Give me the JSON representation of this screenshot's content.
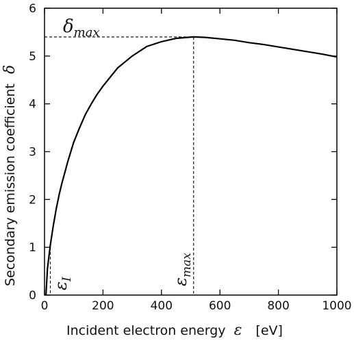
{
  "chart_data": {
    "type": "line",
    "title": "",
    "xlabel": "Incident electron energy",
    "xlabel_symbol": "ε",
    "xlabel_unit": "[eV]",
    "ylabel": "Secondary emission coefficient",
    "ylabel_symbol": "δ",
    "xlim": [
      0,
      1000
    ],
    "ylim": [
      0,
      6
    ],
    "xticks": [
      0,
      200,
      400,
      600,
      800,
      1000
    ],
    "yticks": [
      0,
      1,
      2,
      3,
      4,
      5,
      6
    ],
    "grid": false,
    "legend": "none",
    "line_color": "#000000",
    "series": [
      {
        "x": [
          5,
          10,
          20,
          30,
          40,
          50,
          60,
          80,
          100,
          120,
          140,
          160,
          180,
          200,
          250,
          300,
          350,
          400,
          450,
          510,
          550,
          600,
          650,
          700,
          750,
          800,
          850,
          900,
          950,
          1000
        ],
        "values": [
          0.0,
          0.55,
          1.05,
          1.45,
          1.8,
          2.1,
          2.35,
          2.8,
          3.2,
          3.5,
          3.78,
          4.0,
          4.2,
          4.37,
          4.75,
          5.0,
          5.2,
          5.3,
          5.37,
          5.4,
          5.39,
          5.36,
          5.33,
          5.28,
          5.24,
          5.19,
          5.14,
          5.09,
          5.04,
          4.98
        ]
      }
    ],
    "annotations": {
      "delta_max": {
        "label": "δ",
        "subscript": "max",
        "value": 5.4
      },
      "eps_max": {
        "label": "ε",
        "subscript": "max",
        "value": 510
      },
      "eps_I": {
        "label": "ε",
        "subscript": "I",
        "value": 20
      }
    }
  }
}
